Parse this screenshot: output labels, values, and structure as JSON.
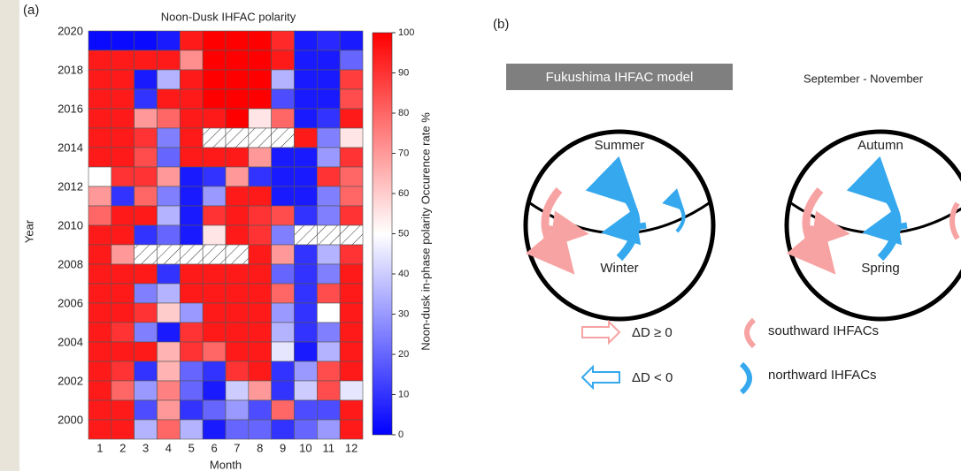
{
  "chart_data": {
    "type": "heatmap",
    "panel_label": "(a)",
    "title": "Noon-Dusk IHFAC polarity",
    "x_label": "Month",
    "y_label": "Year",
    "x": [
      1,
      2,
      3,
      4,
      5,
      6,
      7,
      8,
      9,
      10,
      11,
      12
    ],
    "y": [
      2020,
      null,
      2018,
      null,
      2016,
      null,
      2014,
      null,
      2012,
      null,
      2010,
      null,
      2008,
      null,
      2006,
      null,
      2004,
      null,
      2002,
      null,
      2000
    ],
    "values": [
      [
        2,
        2,
        2,
        5,
        95,
        100,
        100,
        100,
        92,
        5,
        8,
        5
      ],
      [
        95,
        95,
        95,
        95,
        72,
        100,
        100,
        100,
        95,
        5,
        5,
        20
      ],
      [
        95,
        95,
        5,
        35,
        95,
        100,
        100,
        100,
        35,
        5,
        5,
        88
      ],
      [
        95,
        95,
        10,
        95,
        95,
        100,
        100,
        100,
        15,
        5,
        5,
        85
      ],
      [
        95,
        95,
        70,
        80,
        95,
        95,
        100,
        55,
        80,
        5,
        10,
        95
      ],
      [
        95,
        95,
        90,
        25,
        95,
        null,
        null,
        null,
        null,
        95,
        25,
        55
      ],
      [
        95,
        95,
        85,
        20,
        95,
        95,
        95,
        70,
        5,
        5,
        30,
        90
      ],
      [
        50,
        90,
        90,
        70,
        5,
        10,
        70,
        10,
        5,
        5,
        90,
        80
      ],
      [
        70,
        10,
        80,
        25,
        5,
        30,
        95,
        95,
        5,
        5,
        25,
        80
      ],
      [
        80,
        95,
        95,
        35,
        5,
        90,
        95,
        90,
        85,
        10,
        25,
        90
      ],
      [
        95,
        95,
        10,
        20,
        5,
        55,
        95,
        90,
        25,
        null,
        null,
        null
      ],
      [
        95,
        70,
        null,
        null,
        null,
        null,
        null,
        95,
        70,
        10,
        35,
        90
      ],
      [
        95,
        95,
        95,
        10,
        95,
        95,
        95,
        95,
        20,
        10,
        25,
        95
      ],
      [
        95,
        95,
        25,
        35,
        95,
        95,
        95,
        95,
        80,
        10,
        85,
        95
      ],
      [
        95,
        95,
        90,
        60,
        30,
        95,
        95,
        95,
        30,
        10,
        50,
        95
      ],
      [
        95,
        90,
        25,
        5,
        90,
        95,
        95,
        95,
        35,
        10,
        25,
        95
      ],
      [
        95,
        95,
        95,
        65,
        90,
        80,
        95,
        95,
        45,
        5,
        35,
        95
      ],
      [
        95,
        90,
        10,
        65,
        20,
        10,
        90,
        95,
        10,
        30,
        85,
        95
      ],
      [
        95,
        80,
        30,
        75,
        20,
        5,
        40,
        70,
        10,
        40,
        85,
        45
      ],
      [
        95,
        95,
        15,
        70,
        10,
        20,
        30,
        15,
        80,
        15,
        15,
        95
      ],
      [
        95,
        95,
        35,
        80,
        35,
        5,
        20,
        20,
        10,
        20,
        30,
        95
      ]
    ],
    "colormap": [
      "#0000ff",
      "#ffffff",
      "#ff0000"
    ],
    "zlim": [
      0,
      100
    ],
    "zticks": [
      0,
      10,
      20,
      30,
      40,
      50,
      60,
      70,
      80,
      90,
      100
    ],
    "colorbar_label": "Noon-dusk in-phase polarity Occurence rate %"
  },
  "diagram": {
    "panel_label": "(b)",
    "model_title": "Fukushima IHFAC model",
    "season_range": "September - November",
    "left_circle": {
      "top": "Summer",
      "bottom": "Winter"
    },
    "right_circle": {
      "top": "Autumn",
      "bottom": "Spring"
    },
    "legend": {
      "positive": "ΔD ≥ 0",
      "negative": "ΔD < 0",
      "southward": "southward IHFACs",
      "northward": "northward IHFACs"
    }
  }
}
